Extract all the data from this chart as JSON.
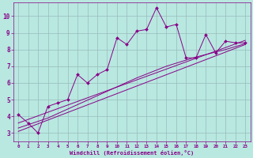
{
  "xlabel": "Windchill (Refroidissement éolien,°C)",
  "xlim": [
    -0.5,
    23.5
  ],
  "ylim": [
    2.5,
    10.8
  ],
  "yticks": [
    3,
    4,
    5,
    6,
    7,
    8,
    9,
    10
  ],
  "xticks": [
    0,
    1,
    2,
    3,
    4,
    5,
    6,
    7,
    8,
    9,
    10,
    11,
    12,
    13,
    14,
    15,
    16,
    17,
    18,
    19,
    20,
    21,
    22,
    23
  ],
  "bg_color": "#b8e8e0",
  "line_color": "#880088",
  "grid_color": "#99bbbb",
  "jagged_x": [
    0,
    1,
    2,
    3,
    4,
    5,
    6,
    7,
    8,
    9,
    10,
    11,
    12,
    13,
    14,
    15,
    16,
    17,
    18,
    19,
    20,
    21,
    22,
    23
  ],
  "jagged_y": [
    4.1,
    3.6,
    3.0,
    4.6,
    4.8,
    5.0,
    6.5,
    6.0,
    6.5,
    6.8,
    8.7,
    8.3,
    9.1,
    9.2,
    10.5,
    9.35,
    9.5,
    7.5,
    7.5,
    8.9,
    7.8,
    8.5,
    8.4,
    8.4
  ],
  "line1_x": [
    0,
    23
  ],
  "line1_y": [
    3.1,
    8.3
  ],
  "line2_x": [
    0,
    23
  ],
  "line2_y": [
    3.6,
    8.55
  ],
  "line3_x": [
    0,
    3,
    6,
    9,
    12,
    15,
    18,
    21,
    23
  ],
  "line3_y": [
    3.3,
    3.9,
    4.7,
    5.5,
    6.3,
    7.0,
    7.55,
    8.0,
    8.35
  ]
}
